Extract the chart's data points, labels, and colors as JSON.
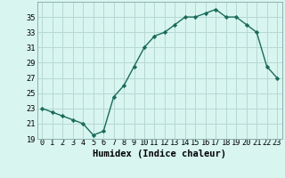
{
  "title": "",
  "xlabel": "Humidex (Indice chaleur)",
  "ylabel": "",
  "x": [
    0,
    1,
    2,
    3,
    4,
    5,
    6,
    7,
    8,
    9,
    10,
    11,
    12,
    13,
    14,
    15,
    16,
    17,
    18,
    19,
    20,
    21,
    22,
    23
  ],
  "y": [
    23.0,
    22.5,
    22.0,
    21.5,
    21.0,
    19.5,
    20.0,
    24.5,
    26.0,
    28.5,
    31.0,
    32.5,
    33.0,
    34.0,
    35.0,
    35.0,
    35.5,
    36.0,
    35.0,
    35.0,
    34.0,
    33.0,
    28.5,
    27.0
  ],
  "line_color": "#1a6b5a",
  "marker": "D",
  "marker_size": 2.2,
  "bg_color": "#d8f5f0",
  "grid_color": "#b8d8d4",
  "ylim": [
    19,
    37
  ],
  "yticks": [
    19,
    21,
    23,
    25,
    27,
    29,
    31,
    33,
    35
  ],
  "xlim": [
    -0.5,
    23.5
  ],
  "tick_fontsize": 6.2,
  "label_fontsize": 7.5,
  "linewidth": 1.0
}
